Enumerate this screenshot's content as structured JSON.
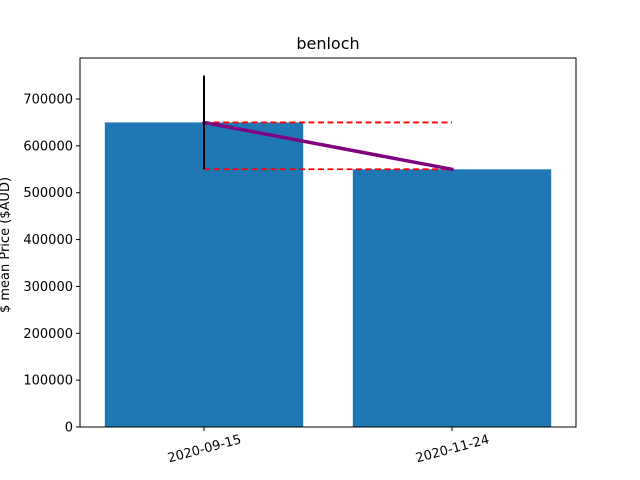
{
  "chart_data": {
    "type": "bar",
    "title": "benloch",
    "xlabel": "",
    "ylabel": "$ mean Price ($AUD)",
    "categories": [
      "2020-09-15",
      "2020-11-24"
    ],
    "values": [
      650000,
      550000
    ],
    "error_bars": [
      [
        550000,
        750000
      ],
      null
    ],
    "ylim": [
      0,
      787500
    ],
    "yticks": [
      0,
      100000,
      200000,
      300000,
      400000,
      500000,
      600000,
      700000
    ],
    "ytick_labels": [
      "0",
      "100000",
      "200000",
      "300000",
      "400000",
      "500000",
      "600000",
      "700000"
    ],
    "trend_line": {
      "from": 650000,
      "to": 550000,
      "color": "#800080"
    },
    "reference_lines": [
      {
        "y": 650000,
        "color": "#ff0000",
        "style": "dashed"
      },
      {
        "y": 550000,
        "color": "#ff0000",
        "style": "dashed"
      }
    ],
    "bar_color": "#1f77b4",
    "grid": false,
    "xtick_rotation": 15
  }
}
